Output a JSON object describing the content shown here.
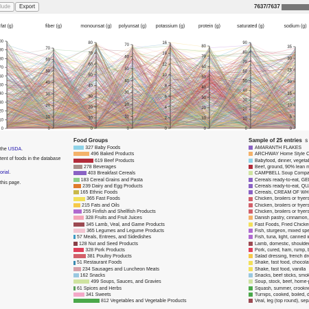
{
  "toolbar": {
    "include_label": "lude",
    "export_label": "Export",
    "count": "7637/7637",
    "progress": 1.0
  },
  "axes": [
    {
      "name": "fat (g)",
      "ticks": [
        "100",
        "90",
        "80",
        "70",
        "60",
        "50",
        "40",
        "30",
        "20",
        "10",
        "0"
      ]
    },
    {
      "name": "fiber (g)",
      "ticks": [
        "70",
        "60",
        "50",
        "40",
        "30",
        "20",
        "10",
        "0"
      ]
    },
    {
      "name": "monounsat (g)",
      "ticks": [
        "80",
        "70",
        "60",
        "50",
        "40",
        "30",
        "20",
        "10",
        "0"
      ]
    },
    {
      "name": "polyunsat (g)",
      "ticks": [
        "70",
        "60",
        "50",
        "40",
        "30",
        "20",
        "10",
        "0"
      ]
    },
    {
      "name": "potassium (g)",
      "ticks": [
        "16",
        "14",
        "12",
        "10",
        "8",
        "6",
        "4",
        "2",
        "0"
      ]
    },
    {
      "name": "protein (g)",
      "ticks": [
        "80",
        "70",
        "60",
        "50",
        "40",
        "30",
        "20",
        "10",
        "0"
      ]
    },
    {
      "name": "saturated (g)",
      "ticks": [
        "90",
        "80",
        "70",
        "60",
        "50",
        "40",
        "30",
        "20",
        "10",
        "0"
      ]
    },
    {
      "name": "sodium (g)",
      "ticks": [
        "35",
        "30",
        "25",
        "20",
        "15",
        "10",
        "5",
        "0"
      ]
    }
  ],
  "intro": {
    "line1_text": "the ",
    "line1_link": "USDA",
    "line1_end": ".",
    "line2": "tent of foods in the database",
    "line3_link": "orial",
    "line3_end": ".",
    "line4": "this page."
  },
  "food_groups_title": "Food Groups",
  "food_groups": [
    {
      "label": "327 Baby Foods",
      "count": 327,
      "color": "#8fd3e8"
    },
    {
      "label": "496 Baked Products",
      "count": 496,
      "color": "#f4b26a"
    },
    {
      "label": "619 Beef Products",
      "count": 619,
      "color": "#b22b3a"
    },
    {
      "label": "278 Beverages",
      "count": 278,
      "color": "#a88f8a"
    },
    {
      "label": "403 Breakfast Cereals",
      "count": 403,
      "color": "#8a62c4"
    },
    {
      "label": "183 Cereal Grains and Pasta",
      "count": 183,
      "color": "#8fcf8a"
    },
    {
      "label": "239 Dairy and Egg Products",
      "count": 239,
      "color": "#e07b2a"
    },
    {
      "label": "165 Ethnic Foods",
      "count": 165,
      "color": "#c8b84a"
    },
    {
      "label": "365 Fast Foods",
      "count": 365,
      "color": "#f2e05a"
    },
    {
      "label": "215 Fats and Oils",
      "count": 215,
      "color": "#f6c94a"
    },
    {
      "label": "255 Finfish and Shellfish Products",
      "count": 255,
      "color": "#b06ad0"
    },
    {
      "label": "328 Fruits and Fruit Juices",
      "count": 328,
      "color": "#f4a6b8"
    },
    {
      "label": "345 Lamb, Veal, and Game Products",
      "count": 345,
      "color": "#9c4a52"
    },
    {
      "label": "365 Legumes and Legume Products",
      "count": 365,
      "color": "#f2c4d0"
    },
    {
      "label": "57 Meals, Entrees, and Sidedishes",
      "count": 57,
      "color": "#3b9ac4"
    },
    {
      "label": "128 Nut and Seed Products",
      "count": 128,
      "color": "#8a4048"
    },
    {
      "label": "328 Pork Products",
      "count": 328,
      "color": "#e0405a"
    },
    {
      "label": "381 Poultry Products",
      "count": 381,
      "color": "#d2606a"
    },
    {
      "label": "51 Restaurant Foods",
      "count": 51,
      "color": "#3a8ab0"
    },
    {
      "label": "234 Sausages and Luncheon Meats",
      "count": 234,
      "color": "#d6a0a8"
    },
    {
      "label": "162 Snacks",
      "count": 162,
      "color": "#9ac8e0"
    },
    {
      "label": "499 Soups, Sauces, and Gravies",
      "count": 499,
      "color": "#cfe3a0"
    },
    {
      "label": "61 Spices and Herbs",
      "count": 61,
      "color": "#5aa05a"
    },
    {
      "label": "341 Sweets",
      "count": 341,
      "color": "#f4a8c8"
    },
    {
      "label": "812 Vegetables and Vegetable Products",
      "count": 812,
      "color": "#4aa84a"
    }
  ],
  "sample_title": "Sample of 25 entries",
  "sample_title_extra": "s",
  "samples": [
    {
      "label": "AMARANTH FLAKES",
      "color": "#8a62c4"
    },
    {
      "label": "ARCHWAY Home Style Cookies",
      "color": "#f4b26a"
    },
    {
      "label": "Babyfood, dinner, vegetables",
      "color": "#8fd3e8"
    },
    {
      "label": "Beef, ground, 90% lean meat",
      "color": "#b22b3a"
    },
    {
      "label": "CAMPBELL Soup Company, CAMPBELL",
      "color": "#cfe3a0"
    },
    {
      "label": "Cereals ready-to-eat, GENERAL",
      "color": "#8a62c4"
    },
    {
      "label": "Cereals ready-to-eat, QUAKER",
      "color": "#8a62c4"
    },
    {
      "label": "Cereals, CREAM OF WHEAT",
      "color": "#8a62c4"
    },
    {
      "label": "Chicken, broilers or fryers,",
      "color": "#d2606a"
    },
    {
      "label": "Chicken, broilers or fryers,",
      "color": "#d2606a"
    },
    {
      "label": "Chicken, broilers or fryers,",
      "color": "#d2606a"
    },
    {
      "label": "Danish pastry, cinnamon, unenriched",
      "color": "#f4b26a"
    },
    {
      "label": "Fast Foods, Fried Chicken, KFC",
      "color": "#f2e05a"
    },
    {
      "label": "Fish, sturgeon, mixed species",
      "color": "#b06ad0"
    },
    {
      "label": "Fish, tuna, light, canned in",
      "color": "#b06ad0"
    },
    {
      "label": "Lamb, domestic, shoulder, blade",
      "color": "#9c4a52"
    },
    {
      "label": "Pork, cured, ham, rump, bone-in",
      "color": "#e0405a"
    },
    {
      "label": "Salad dressing, french dressing",
      "color": "#f6c94a"
    },
    {
      "label": "Shake, fast food, chocolate",
      "color": "#f2e05a"
    },
    {
      "label": "Shake, fast food, vanilla",
      "color": "#f2e05a"
    },
    {
      "label": "Snacks, beef sticks, smoked",
      "color": "#9ac8e0"
    },
    {
      "label": "Soup, stock, beef, home-prepared",
      "color": "#cfe3a0"
    },
    {
      "label": "Squash, summer, crookneck and",
      "color": "#4aa84a"
    },
    {
      "label": "Turnips, cooked, boiled, drained",
      "color": "#4aa84a"
    },
    {
      "label": "Veal, leg (top round), separable",
      "color": "#9c4a52"
    }
  ]
}
